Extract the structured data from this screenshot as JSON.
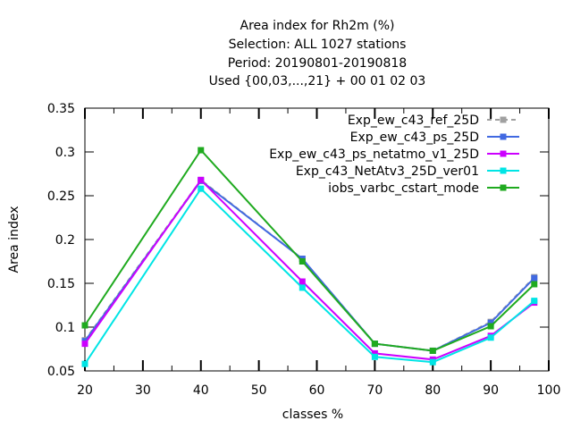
{
  "chart_data": {
    "type": "line",
    "title": "Area index  for Rh2m (%)",
    "subtitles": [
      "Selection: ALL    1027 stations",
      "Period: 20190801-20190818",
      "Used {00,03,...,21} + 00 01 02 03"
    ],
    "xlabel": "classes %",
    "ylabel": "Area index",
    "xlim": [
      20,
      100
    ],
    "ylim": [
      0.05,
      0.35
    ],
    "xticks": [
      20,
      30,
      40,
      50,
      60,
      70,
      80,
      90,
      100
    ],
    "yticks": [
      0.05,
      0.1,
      0.15,
      0.2,
      0.25,
      0.3,
      0.35
    ],
    "xtick_labels": [
      "20",
      "30",
      "40",
      "50",
      "60",
      "70",
      "80",
      "90",
      "100"
    ],
    "ytick_labels": [
      "0.05",
      "0.1",
      "0.15",
      "0.2",
      "0.25",
      "0.3",
      "0.35"
    ],
    "grid": false,
    "legend_position": "top-right",
    "series": [
      {
        "name": "Exp_ew_c43_ref_25D",
        "color": "#a0a0a0",
        "dashed": true,
        "x": [
          20,
          40,
          57.5,
          70,
          80,
          90,
          97.5
        ],
        "values": [
          0.085,
          0.268,
          0.178,
          0.081,
          0.073,
          0.106,
          0.157
        ]
      },
      {
        "name": "Exp_ew_c43_ps_25D",
        "color": "#4169e1",
        "dashed": false,
        "x": [
          20,
          40,
          57.5,
          70,
          80,
          90,
          97.5
        ],
        "values": [
          0.084,
          0.267,
          0.178,
          0.081,
          0.073,
          0.105,
          0.156
        ]
      },
      {
        "name": "Exp_ew_c43_ps_netatmo_v1_25D",
        "color": "#cc00ff",
        "dashed": false,
        "x": [
          20,
          40,
          57.5,
          70,
          80,
          90,
          97.5
        ],
        "values": [
          0.081,
          0.268,
          0.152,
          0.07,
          0.063,
          0.09,
          0.128
        ]
      },
      {
        "name": "Exp_c43_NetAtv3_25D_ver01",
        "color": "#00e5e5",
        "dashed": false,
        "x": [
          20,
          40,
          57.5,
          70,
          80,
          90,
          97.5
        ],
        "values": [
          0.058,
          0.258,
          0.145,
          0.066,
          0.06,
          0.088,
          0.13
        ]
      },
      {
        "name": "iobs_varbc_cstart_mode",
        "color": "#1faa1f",
        "dashed": false,
        "x": [
          20,
          40,
          57.5,
          70,
          80,
          90,
          97.5
        ],
        "values": [
          0.102,
          0.302,
          0.175,
          0.081,
          0.073,
          0.101,
          0.149
        ]
      }
    ]
  }
}
